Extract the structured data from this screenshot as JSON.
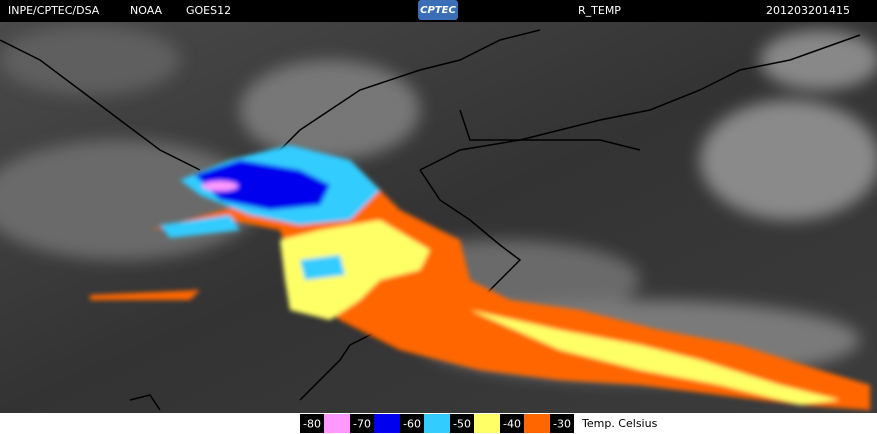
{
  "header": {
    "source": "INPE/CPTEC/DSA",
    "agency": "NOAA",
    "satellite": "GOES12",
    "logo": "CPTEC",
    "product": "R_TEMP",
    "timestamp": "201203201415"
  },
  "legend": {
    "items": [
      {
        "value": -80,
        "color": "#ff99ff"
      },
      {
        "value": -70,
        "color": "#0000ee"
      },
      {
        "value": -60,
        "color": "#33ccff"
      },
      {
        "value": -50,
        "color": "#ffff66"
      },
      {
        "value": -40,
        "color": "#ff6600"
      },
      {
        "value": -30
      }
    ],
    "unit": "Temp. Celsius"
  }
}
